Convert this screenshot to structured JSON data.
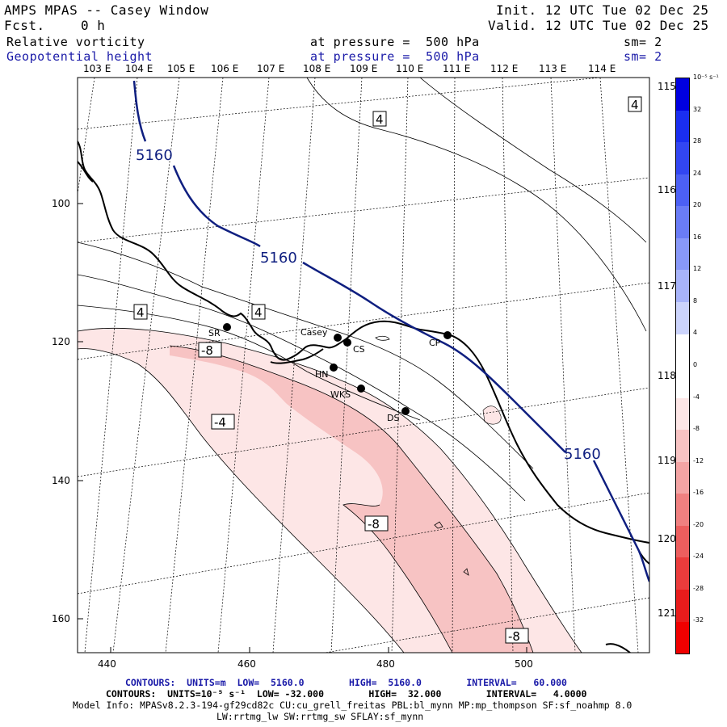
{
  "header": {
    "title": "AMPS MPAS -- Casey Window",
    "fcst_label": "Fcst.",
    "fcst_value": "0 h",
    "init": "Init. 12 UTC Tue 02 Dec 25",
    "valid": "Valid. 12 UTC Tue 02 Dec 25",
    "field1": {
      "name": "Relative vorticity",
      "level": "at pressure =  500 hPa",
      "smooth": "sm= 2"
    },
    "field2": {
      "name": "Geopotential height",
      "level": "at pressure =  500 hPa",
      "smooth": "sm= 2"
    }
  },
  "map": {
    "lon_labels_top": [
      "103 E",
      "104 E",
      "105 E",
      "106 E",
      "107 E",
      "108 E",
      "109 E",
      "110 E",
      "111 E",
      "112 E",
      "113 E",
      "114 E"
    ],
    "lon_labels_right": [
      "115 E",
      "116 E",
      "117 E",
      "118 E",
      "119 E",
      "120 E",
      "121 E"
    ],
    "y_ticks": [
      "100",
      "120",
      "140",
      "160"
    ],
    "x_ticks": [
      "440",
      "460",
      "480",
      "500"
    ],
    "stations": [
      {
        "name": "SR"
      },
      {
        "name": "Casey"
      },
      {
        "name": "CS"
      },
      {
        "name": "HN"
      },
      {
        "name": "WKS"
      },
      {
        "name": "DS"
      },
      {
        "name": "CP"
      }
    ],
    "height_contour_labels": [
      "5160",
      "5160",
      "5160"
    ],
    "vorticity_labels": [
      "4",
      "4",
      "4",
      "4",
      "-8",
      "-4",
      "-8",
      "-8"
    ],
    "colors": {
      "height_contour": "#0f1f80",
      "vort_fill_light": "#fde6e6",
      "vort_fill_mid": "#f7c3c3"
    }
  },
  "colorbar": {
    "units": "10⁻⁵ s⁻¹",
    "labels": [
      "32",
      "28",
      "24",
      "20",
      "16",
      "12",
      "8",
      "4",
      "0",
      "-4",
      "-8",
      "-12",
      "-16",
      "-20",
      "-24",
      "-28",
      "-32"
    ],
    "colors": [
      "#0000e0",
      "#1a2ef0",
      "#3246f2",
      "#4c60f4",
      "#6a7cf6",
      "#8898f8",
      "#a8b4fa",
      "#ccd4fc",
      "#ffffff",
      "#ffffff",
      "#fde6e6",
      "#f7c3c3",
      "#f3a4a4",
      "#ef8080",
      "#ec5e5e",
      "#ea3c3c",
      "#e81c1c",
      "#f00000"
    ]
  },
  "footer": {
    "line1": "CONTOURS:  UNITS=m  LOW=  5160.0        HIGH=  5160.0        INTERVAL=   60.000",
    "line2": "CONTOURS:  UNITS=10⁻⁵ s⁻¹  LOW= -32.000        HIGH=  32.000        INTERVAL=   4.0000",
    "line3": "Model Info: MPASv8.2.3-194-gf29cd82c CU:cu_grell_freitas PBL:bl_mynn MP:mp_thompson SF:sf_noahmp 8.0",
    "line4": "LW:rrtmg_lw SW:rrtmg_sw SFLAY:sf_mynn"
  }
}
